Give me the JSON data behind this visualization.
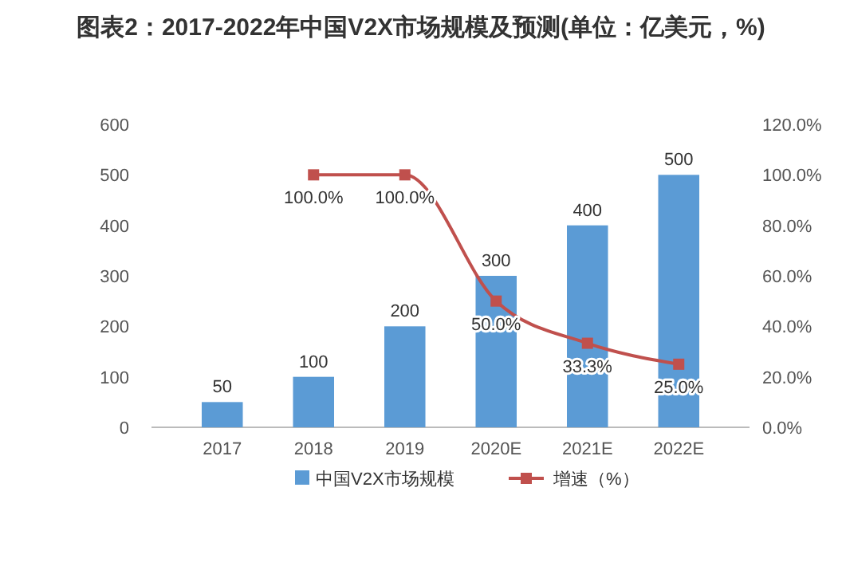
{
  "chart_data": {
    "type": "bar",
    "title": "图表2：2017-2022年中国V2X市场规模及预测(单位：亿美元，%)",
    "categories": [
      "2017",
      "2018",
      "2019",
      "2020E",
      "2021E",
      "2022E"
    ],
    "series": [
      {
        "name": "中国V2X市场规模",
        "color": "#5b9bd5",
        "values": [
          50,
          100,
          200,
          300,
          400,
          500
        ],
        "value_labels": [
          "50",
          "100",
          "200",
          "300",
          "400",
          "500"
        ]
      },
      {
        "name": "增速（%）",
        "type": "line",
        "axis": "y2",
        "color": "#c0504d",
        "marker": "square",
        "values": [
          null,
          100,
          100,
          50,
          33.3,
          25
        ],
        "value_labels": [
          null,
          "100.0%",
          "100.0%",
          "50.0%",
          "33.3%",
          "25.0%"
        ]
      }
    ],
    "ylim": [
      0,
      600
    ],
    "yticks": [
      0,
      100,
      200,
      300,
      400,
      500,
      600
    ],
    "y2lim": [
      0,
      120
    ],
    "y2ticks": [
      {
        "value": 0,
        "label": "0.0%"
      },
      {
        "value": 20,
        "label": "20.0%"
      },
      {
        "value": 40,
        "label": "40.0%"
      },
      {
        "value": 60,
        "label": "60.0%"
      },
      {
        "value": 80,
        "label": "80.0%"
      },
      {
        "value": 100,
        "label": "100.0%"
      },
      {
        "value": 120,
        "label": "120.0%"
      }
    ],
    "legend": "bottom"
  }
}
